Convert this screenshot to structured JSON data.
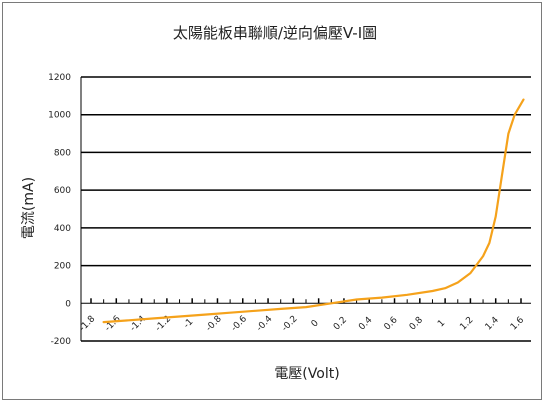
{
  "chart_data": {
    "type": "line",
    "title": "太陽能板串聯順/逆向偏壓V-I圖",
    "xlabel": "電壓(Volt)",
    "ylabel": "電流(mA)",
    "xlim": [
      -1.8,
      1.6
    ],
    "ylim": [
      -200,
      1200
    ],
    "y_ticks": [
      -200,
      0,
      200,
      400,
      600,
      800,
      1000,
      1200
    ],
    "x_ticks": [
      -1.8,
      -1.6,
      -1.4,
      -1.2,
      -1,
      -0.8,
      -0.6,
      -0.4,
      -0.2,
      0,
      0.2,
      0.4,
      0.6,
      0.8,
      1,
      1.2,
      1.4,
      1.6
    ],
    "x_tick_labels": [
      "-1.8",
      "-1.6",
      "-1.4",
      "-1.2",
      "-1",
      "-0.8",
      "-0.6",
      "-0.4",
      "-0.2",
      "0",
      "0.2",
      "0.4",
      "0.6",
      "0.8",
      "1",
      "1.2",
      "1.4",
      "1.6"
    ],
    "grid": true,
    "legend": "none",
    "line_color": "#f5a21b",
    "series": [
      {
        "x": [
          -1.7,
          -1.5,
          -1.3,
          -1.1,
          -0.9,
          -0.7,
          -0.5,
          -0.3,
          -0.1,
          0.1,
          0.3,
          0.5,
          0.7,
          0.9,
          1.0,
          1.1,
          1.2,
          1.3,
          1.35,
          1.4,
          1.45,
          1.5,
          1.55,
          1.62
        ],
        "values": [
          -100,
          -90,
          -80,
          -70,
          -60,
          -50,
          -40,
          -30,
          -20,
          0,
          20,
          30,
          45,
          65,
          80,
          110,
          160,
          250,
          320,
          460,
          680,
          900,
          1000,
          1080
        ]
      }
    ]
  }
}
